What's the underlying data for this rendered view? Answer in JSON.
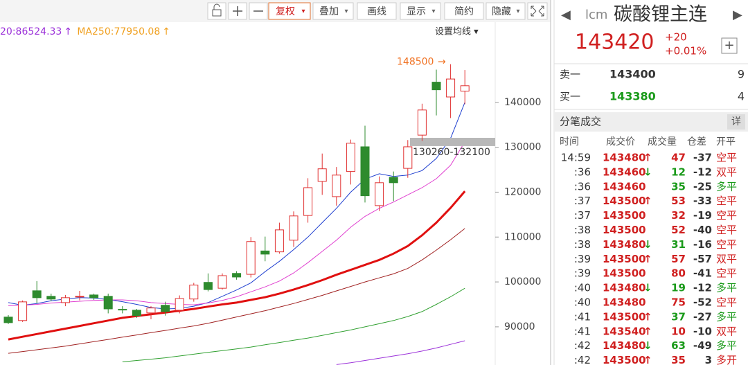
{
  "toolbar": {
    "buttons": [
      "复权",
      "叠加",
      "画线",
      "显示",
      "简约",
      "隐藏"
    ],
    "dropdown": [
      "▾",
      "▾",
      "",
      "▾",
      "",
      "▾"
    ],
    "active": 0
  },
  "chart_data": {
    "type": "candlestick",
    "ylim": [
      81500,
      157400
    ],
    "yticks": [
      90000,
      100000,
      110000,
      120000,
      130000,
      140000
    ],
    "up_color": "#e03030",
    "down_color": "#2e8b2e",
    "legend": [
      {
        "text": "20:86524.33",
        "arrow": "↑",
        "color": "#9b30d9"
      },
      {
        "text": "MA250:77950.08",
        "arrow": "↑",
        "color": "#f0a020"
      }
    ],
    "ma_settings": "设置均线 ▾",
    "high_annotation": {
      "value": 148500,
      "arrow": "→",
      "color": "#f07020"
    },
    "gap": {
      "low": 130260,
      "high": 132100,
      "label": "130260-132100"
    },
    "open": [
      92170,
      91400,
      98030,
      96800,
      95400,
      96700,
      97100,
      96800,
      93900,
      93700,
      93100,
      94800,
      93700,
      96200,
      99900,
      98600,
      101900,
      101700,
      106900,
      106700,
      109300,
      114800,
      122400,
      119000,
      124600,
      130100,
      117000,
      123300,
      125300,
      132700,
      144500,
      141200,
      142500
    ],
    "high": [
      92600,
      95870,
      100190,
      97400,
      97100,
      98000,
      97400,
      97400,
      94600,
      94000,
      94600,
      95600,
      97000,
      99800,
      101900,
      101900,
      102400,
      110000,
      110100,
      113200,
      115700,
      123100,
      128600,
      125600,
      131700,
      134800,
      123500,
      124600,
      131600,
      139700,
      147300,
      148500,
      147200
    ],
    "low": [
      90620,
      91090,
      95250,
      95700,
      94600,
      95900,
      96000,
      93000,
      93000,
      92000,
      91700,
      92500,
      93000,
      95600,
      97900,
      98300,
      100500,
      101000,
      104600,
      106300,
      107800,
      113200,
      119400,
      117000,
      121700,
      117700,
      115800,
      118000,
      123200,
      131400,
      137100,
      136500,
      139600
    ],
    "close": [
      90930,
      95560,
      96490,
      96180,
      96490,
      96800,
      96490,
      94000,
      93800,
      92500,
      94200,
      93400,
      96300,
      99300,
      98300,
      101400,
      101100,
      109000,
      106200,
      111600,
      114700,
      121000,
      125200,
      123800,
      130900,
      119200,
      122100,
      122100,
      130100,
      138300,
      142800,
      145200,
      143700
    ],
    "series": [
      {
        "color": "#2040d0",
        "width": 1,
        "values": [
          95400,
          94800,
          95200,
          95800,
          96200,
          96500,
          96400,
          96100,
          95600,
          95000,
          94300,
          94000,
          94100,
          94600,
          95400,
          96800,
          98200,
          99800,
          102300,
          104600,
          107200,
          110000,
          113200,
          116400,
          120000,
          122900,
          124100,
          123500,
          123800,
          124800,
          127500,
          132000,
          140000
        ]
      },
      {
        "color": "#e040d0",
        "width": 1,
        "values": [
          94700,
          94800,
          95000,
          95300,
          95500,
          95700,
          95900,
          96000,
          96000,
          95800,
          95400,
          95200,
          95000,
          94900,
          95300,
          95900,
          96700,
          97800,
          98900,
          100200,
          102000,
          104300,
          106800,
          109300,
          112200,
          114600,
          116400,
          117800,
          119400,
          121000,
          123000,
          126000,
          131200
        ]
      },
      {
        "color": "#e01010",
        "width": 3,
        "values": [
          87200,
          87800,
          88400,
          89000,
          89600,
          90200,
          90800,
          91400,
          92000,
          92400,
          92800,
          93200,
          93600,
          94000,
          94500,
          95000,
          95400,
          96000,
          96600,
          97400,
          98300,
          99300,
          100400,
          101600,
          102700,
          103800,
          104900,
          106300,
          108000,
          110400,
          113200,
          116500,
          120200
        ]
      },
      {
        "color": "#a02020",
        "width": 1,
        "values": [
          84100,
          84500,
          84900,
          85300,
          85700,
          86200,
          86700,
          87200,
          87700,
          88200,
          88700,
          89200,
          89700,
          90200,
          90800,
          91500,
          92200,
          92900,
          93600,
          94400,
          95200,
          96100,
          97000,
          98000,
          99000,
          100000,
          100900,
          101800,
          103000,
          104900,
          107100,
          109400,
          111900
        ]
      },
      {
        "color": "#30a030",
        "width": 1,
        "values": [
          null,
          null,
          null,
          null,
          null,
          null,
          null,
          null,
          82200,
          82500,
          82800,
          83100,
          83500,
          83900,
          84300,
          84700,
          85100,
          85500,
          86000,
          86500,
          87000,
          87500,
          88100,
          88700,
          89300,
          90000,
          90700,
          91400,
          92300,
          93400,
          95000,
          96700,
          98600
        ]
      },
      {
        "color": "#9b30d9",
        "width": 1,
        "values": [
          null,
          null,
          null,
          null,
          null,
          null,
          null,
          null,
          null,
          null,
          null,
          null,
          null,
          null,
          null,
          null,
          null,
          null,
          null,
          null,
          null,
          null,
          null,
          81600,
          82000,
          82500,
          83000,
          83500,
          84000,
          84600,
          85300,
          86100,
          86900
        ]
      }
    ]
  },
  "quote": {
    "left": "◀",
    "code": "lcm",
    "name": "碳酸锂主连",
    "right": "▶",
    "price": "143420",
    "change": "+20",
    "pct": "+0.01%",
    "add": "+"
  },
  "book": [
    {
      "label": "卖一",
      "price": "143400",
      "qty": "9",
      "color": "#333"
    },
    {
      "label": "买一",
      "price": "143380",
      "qty": "4",
      "color": "#1a9a1a"
    }
  ],
  "ticks_panel": {
    "title": "分笔成交",
    "detail": "详",
    "headers": [
      "时间",
      "成交价",
      "成交量",
      "仓差",
      "开平"
    ],
    "rows": [
      [
        "14:59",
        "143480",
        "↑",
        "47",
        "-37",
        "空平",
        "r",
        "r",
        "r"
      ],
      [
        ":36",
        "143460",
        "↓",
        "12",
        "-12",
        "双平",
        "g",
        "g",
        "r"
      ],
      [
        ":36",
        "143460",
        "",
        "35",
        "-25",
        "多平",
        "",
        "g",
        "g"
      ],
      [
        ":37",
        "143500",
        "↑",
        "53",
        "-33",
        "空平",
        "r",
        "r",
        "r"
      ],
      [
        ":37",
        "143500",
        "",
        "32",
        "-19",
        "空平",
        "",
        "r",
        "r"
      ],
      [
        ":38",
        "143500",
        "",
        "52",
        "-40",
        "空平",
        "",
        "r",
        "r"
      ],
      [
        ":38",
        "143480",
        "↓",
        "31",
        "-16",
        "空平",
        "g",
        "g",
        "r"
      ],
      [
        ":39",
        "143500",
        "↑",
        "57",
        "-57",
        "双平",
        "r",
        "r",
        "r"
      ],
      [
        ":39",
        "143500",
        "",
        "80",
        "-41",
        "空平",
        "",
        "r",
        "r"
      ],
      [
        ":40",
        "143480",
        "↓",
        "19",
        "-12",
        "多平",
        "g",
        "g",
        "g"
      ],
      [
        ":40",
        "143480",
        "",
        "75",
        "-52",
        "空平",
        "",
        "r",
        "r"
      ],
      [
        ":41",
        "143500",
        "↑",
        "37",
        "-27",
        "多平",
        "r",
        "g",
        "g"
      ],
      [
        ":41",
        "143540",
        "↑",
        "10",
        "-10",
        "双平",
        "r",
        "r",
        "r"
      ],
      [
        ":42",
        "143480",
        "↓",
        "63",
        "-49",
        "多平",
        "g",
        "g",
        "g"
      ],
      [
        ":42",
        "143500",
        "↑",
        "35",
        "3",
        "多开",
        "r",
        "r",
        "r"
      ]
    ]
  }
}
